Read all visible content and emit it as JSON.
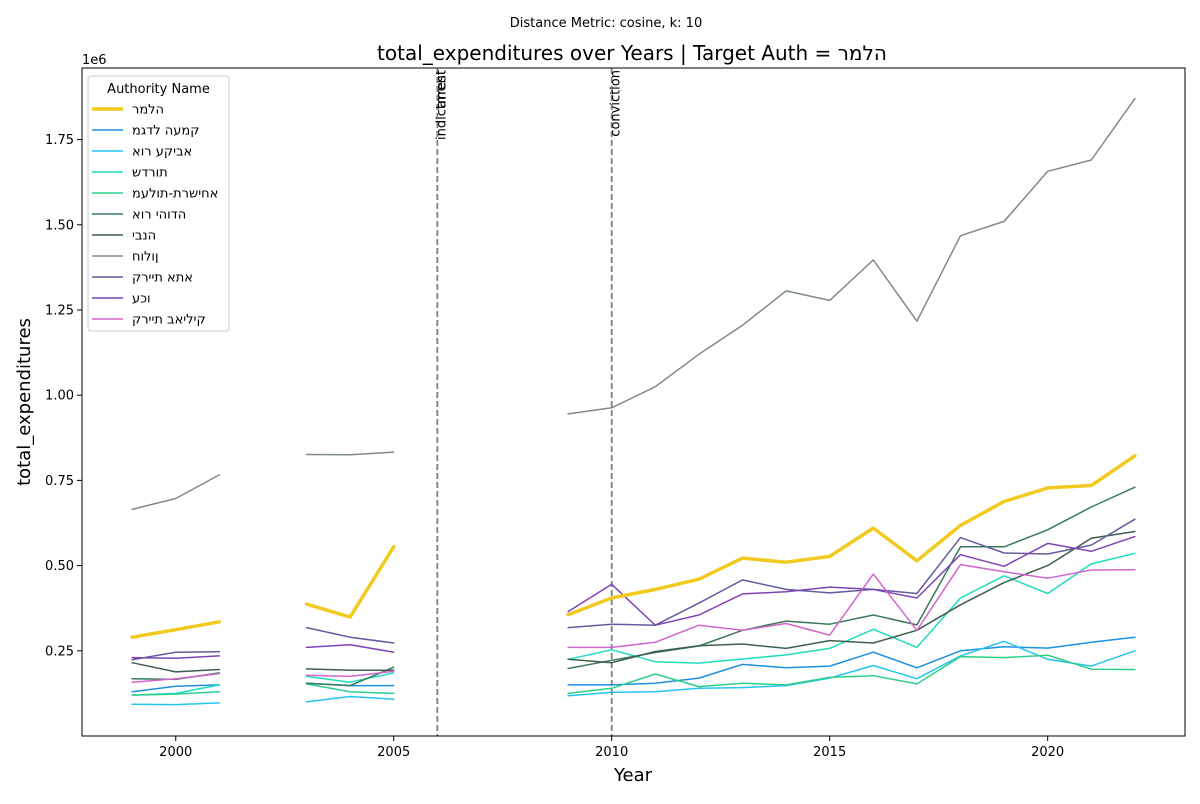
{
  "suptitle": "Distance Metric: cosine, k: 10",
  "title": "total_expenditures over Years | Target Auth = הלמר",
  "chart_data": {
    "type": "line",
    "xlabel": "Year",
    "ylabel": "total_expenditures",
    "y_offset_label": "1e6",
    "xlim": [
      1997.85,
      2023.15
    ],
    "ylim": [
      0,
      1.96
    ],
    "y_scale_factor": 1000000,
    "xticks": [
      2000,
      2005,
      2010,
      2015,
      2020
    ],
    "yticks": [
      0.25,
      0.5,
      0.75,
      1.0,
      1.25,
      1.5,
      1.75
    ],
    "ytick_labels": [
      "0.25",
      "0.50",
      "0.75",
      "1.00",
      "1.25",
      "1.50",
      "1.75"
    ],
    "legend_title": "Authority Name",
    "legend_position": "upper-left",
    "vlines": [
      {
        "x": 2006,
        "labels": [
          "indictment",
          "arrest"
        ]
      },
      {
        "x": 2010,
        "labels": [
          "conviction"
        ]
      }
    ],
    "series": [
      {
        "name": "הלמר",
        "color": "#f2ca1f",
        "width": 3.5,
        "segments": [
          [
            [
              1999,
              0.29
            ],
            [
              2000,
              0.312
            ],
            [
              2001,
              0.335
            ]
          ],
          [
            [
              2003,
              0.387
            ],
            [
              2004,
              0.349
            ],
            [
              2005,
              0.555
            ]
          ],
          [
            [
              2009,
              0.356
            ],
            [
              2010,
              0.405
            ],
            [
              2011,
              0.43
            ],
            [
              2012,
              0.46
            ],
            [
              2013,
              0.522
            ],
            [
              2014,
              0.51
            ],
            [
              2015,
              0.527
            ],
            [
              2016,
              0.61
            ],
            [
              2017,
              0.514
            ],
            [
              2018,
              0.618
            ],
            [
              2019,
              0.688
            ],
            [
              2020,
              0.728
            ],
            [
              2021,
              0.735
            ],
            [
              2022,
              0.822
            ]
          ]
        ]
      },
      {
        "name": "קמעה לדגמ",
        "color": "#1f8fe0",
        "width": 1.5,
        "segments": [
          [
            [
              1999,
              0.13
            ],
            [
              2000,
              0.146
            ],
            [
              2001,
              0.15
            ]
          ],
          [
            [
              2003,
              0.155
            ],
            [
              2004,
              0.148
            ],
            [
              2005,
              0.148
            ]
          ],
          [
            [
              2009,
              0.15
            ],
            [
              2010,
              0.15
            ],
            [
              2011,
              0.155
            ],
            [
              2012,
              0.17
            ],
            [
              2013,
              0.21
            ],
            [
              2014,
              0.2
            ],
            [
              2015,
              0.205
            ],
            [
              2016,
              0.246
            ],
            [
              2017,
              0.2
            ],
            [
              2018,
              0.25
            ],
            [
              2019,
              0.262
            ],
            [
              2020,
              0.258
            ],
            [
              2021,
              0.275
            ],
            [
              2022,
              0.29
            ]
          ]
        ]
      },
      {
        "name": "אביקע רוא",
        "color": "#25c4ef",
        "width": 1.5,
        "segments": [
          [
            [
              1999,
              0.093
            ],
            [
              2000,
              0.092
            ],
            [
              2001,
              0.097
            ]
          ],
          [
            [
              2003,
              0.1
            ],
            [
              2004,
              0.116
            ],
            [
              2005,
              0.108
            ]
          ],
          [
            [
              2009,
              0.118
            ],
            [
              2010,
              0.128
            ],
            [
              2011,
              0.13
            ],
            [
              2012,
              0.14
            ],
            [
              2013,
              0.142
            ],
            [
              2014,
              0.148
            ],
            [
              2015,
              0.17
            ],
            [
              2016,
              0.207
            ],
            [
              2017,
              0.168
            ],
            [
              2018,
              0.235
            ],
            [
              2019,
              0.278
            ],
            [
              2020,
              0.225
            ],
            [
              2021,
              0.205
            ],
            [
              2022,
              0.25
            ]
          ]
        ]
      },
      {
        "name": "תורדש",
        "color": "#1fdcc0",
        "width": 1.5,
        "segments": [
          [
            [
              1999,
              0.12
            ],
            [
              2000,
              0.125
            ],
            [
              2001,
              0.15
            ]
          ],
          [
            [
              2003,
              0.175
            ],
            [
              2004,
              0.158
            ],
            [
              2005,
              0.185
            ]
          ],
          [
            [
              2009,
              0.225
            ],
            [
              2010,
              0.253
            ],
            [
              2011,
              0.218
            ],
            [
              2012,
              0.214
            ],
            [
              2013,
              0.226
            ],
            [
              2014,
              0.238
            ],
            [
              2015,
              0.257
            ],
            [
              2016,
              0.313
            ],
            [
              2017,
              0.26
            ],
            [
              2018,
              0.405
            ],
            [
              2019,
              0.47
            ],
            [
              2020,
              0.418
            ],
            [
              2021,
              0.505
            ],
            [
              2022,
              0.536
            ]
          ]
        ]
      },
      {
        "name": "אחישרת-תולעמ",
        "color": "#2dcf8a",
        "width": 1.5,
        "segments": [
          [
            [
              1999,
              0.12
            ],
            [
              2000,
              0.123
            ],
            [
              2001,
              0.13
            ]
          ],
          [
            [
              2003,
              0.153
            ],
            [
              2004,
              0.13
            ],
            [
              2005,
              0.125
            ]
          ],
          [
            [
              2009,
              0.125
            ],
            [
              2010,
              0.14
            ],
            [
              2011,
              0.182
            ],
            [
              2012,
              0.145
            ],
            [
              2013,
              0.155
            ],
            [
              2014,
              0.15
            ],
            [
              2015,
              0.172
            ],
            [
              2016,
              0.177
            ],
            [
              2017,
              0.153
            ],
            [
              2018,
              0.233
            ],
            [
              2019,
              0.23
            ],
            [
              2020,
              0.237
            ],
            [
              2021,
              0.196
            ],
            [
              2022,
              0.195
            ]
          ]
        ]
      },
      {
        "name": "הדוהי רוא",
        "color": "#3a7a5a",
        "width": 1.5,
        "segments": [
          [
            [
              1999,
              0.168
            ],
            [
              2000,
              0.166
            ],
            [
              2001,
              0.185
            ]
          ],
          [
            [
              2003,
              0.155
            ],
            [
              2004,
              0.148
            ],
            [
              2005,
              0.202
            ]
          ],
          [
            [
              2009,
              0.198
            ],
            [
              2010,
              0.222
            ],
            [
              2011,
              0.245
            ],
            [
              2012,
              0.264
            ],
            [
              2013,
              0.31
            ],
            [
              2014,
              0.337
            ],
            [
              2015,
              0.328
            ],
            [
              2016,
              0.355
            ],
            [
              2017,
              0.326
            ],
            [
              2018,
              0.555
            ],
            [
              2019,
              0.555
            ],
            [
              2020,
              0.605
            ],
            [
              2021,
              0.672
            ],
            [
              2022,
              0.73
            ]
          ]
        ]
      },
      {
        "name": "הנבי",
        "color": "#3f5f4e",
        "width": 1.5,
        "segments": [
          [
            [
              1999,
              0.215
            ],
            [
              2000,
              0.188
            ],
            [
              2001,
              0.195
            ]
          ],
          [
            [
              2003,
              0.197
            ],
            [
              2004,
              0.193
            ],
            [
              2005,
              0.193
            ]
          ],
          [
            [
              2009,
              0.225
            ],
            [
              2010,
              0.215
            ],
            [
              2011,
              0.248
            ],
            [
              2012,
              0.265
            ],
            [
              2013,
              0.27
            ],
            [
              2014,
              0.257
            ],
            [
              2015,
              0.28
            ],
            [
              2016,
              0.273
            ],
            [
              2017,
              0.31
            ],
            [
              2018,
              0.385
            ],
            [
              2019,
              0.45
            ],
            [
              2020,
              0.5
            ],
            [
              2021,
              0.58
            ],
            [
              2022,
              0.6
            ]
          ]
        ]
      },
      {
        "name": "ןולוח",
        "color": "#7f8c86",
        "width": 1.5,
        "segments": [
          [
            [
              1999,
              0.665
            ],
            [
              2000,
              0.697
            ],
            [
              2001,
              0.766
            ]
          ],
          [
            [
              2003,
              0.826
            ],
            [
              2004,
              0.825
            ],
            [
              2005,
              0.833
            ]
          ],
          [
            [
              2009,
              0.945
            ],
            [
              2010,
              0.963
            ],
            [
              2011,
              1.025
            ],
            [
              2012,
              1.12
            ],
            [
              2013,
              1.205
            ],
            [
              2014,
              1.306
            ],
            [
              2015,
              1.278
            ],
            [
              2016,
              1.397
            ],
            [
              2017,
              1.217
            ],
            [
              2018,
              1.468
            ],
            [
              2019,
              1.51
            ],
            [
              2020,
              1.657
            ],
            [
              2021,
              1.69
            ],
            [
              2022,
              1.87
            ]
          ]
        ]
      },
      {
        "name": "אתא תיירק",
        "color": "#625c9e",
        "width": 1.5,
        "segments": [
          [
            [
              1999,
              0.224
            ],
            [
              2000,
              0.246
            ],
            [
              2001,
              0.247
            ]
          ],
          [
            [
              2003,
              0.318
            ],
            [
              2004,
              0.29
            ],
            [
              2005,
              0.273
            ]
          ],
          [
            [
              2009,
              0.318
            ],
            [
              2010,
              0.328
            ],
            [
              2011,
              0.325
            ],
            [
              2012,
              0.39
            ],
            [
              2013,
              0.458
            ],
            [
              2014,
              0.43
            ],
            [
              2015,
              0.42
            ],
            [
              2016,
              0.43
            ],
            [
              2017,
              0.418
            ],
            [
              2018,
              0.582
            ],
            [
              2019,
              0.537
            ],
            [
              2020,
              0.534
            ],
            [
              2021,
              0.56
            ],
            [
              2022,
              0.636
            ]
          ]
        ]
      },
      {
        "name": "וכע",
        "color": "#7e44b5",
        "width": 1.5,
        "segments": [
          [
            [
              1999,
              0.23
            ],
            [
              2000,
              0.228
            ],
            [
              2001,
              0.235
            ]
          ],
          [
            [
              2003,
              0.26
            ],
            [
              2004,
              0.268
            ],
            [
              2005,
              0.246
            ]
          ],
          [
            [
              2009,
              0.365
            ],
            [
              2010,
              0.445
            ],
            [
              2011,
              0.325
            ],
            [
              2012,
              0.355
            ],
            [
              2013,
              0.417
            ],
            [
              2014,
              0.423
            ],
            [
              2015,
              0.437
            ],
            [
              2016,
              0.43
            ],
            [
              2017,
              0.405
            ],
            [
              2018,
              0.532
            ],
            [
              2019,
              0.498
            ],
            [
              2020,
              0.565
            ],
            [
              2021,
              0.542
            ],
            [
              2022,
              0.585
            ]
          ]
        ]
      },
      {
        "name": "קיליאב תיירק",
        "color": "#d066cd",
        "width": 1.5,
        "segments": [
          [
            [
              1999,
              0.158
            ],
            [
              2000,
              0.168
            ],
            [
              2001,
              0.183
            ]
          ],
          [
            [
              2003,
              0.178
            ],
            [
              2004,
              0.175
            ],
            [
              2005,
              0.19
            ]
          ],
          [
            [
              2009,
              0.26
            ],
            [
              2010,
              0.26
            ],
            [
              2011,
              0.275
            ],
            [
              2012,
              0.325
            ],
            [
              2013,
              0.31
            ],
            [
              2014,
              0.33
            ],
            [
              2015,
              0.296
            ],
            [
              2016,
              0.475
            ],
            [
              2017,
              0.31
            ],
            [
              2018,
              0.503
            ],
            [
              2019,
              0.482
            ],
            [
              2020,
              0.463
            ],
            [
              2021,
              0.487
            ],
            [
              2022,
              0.488
            ]
          ]
        ]
      }
    ]
  }
}
